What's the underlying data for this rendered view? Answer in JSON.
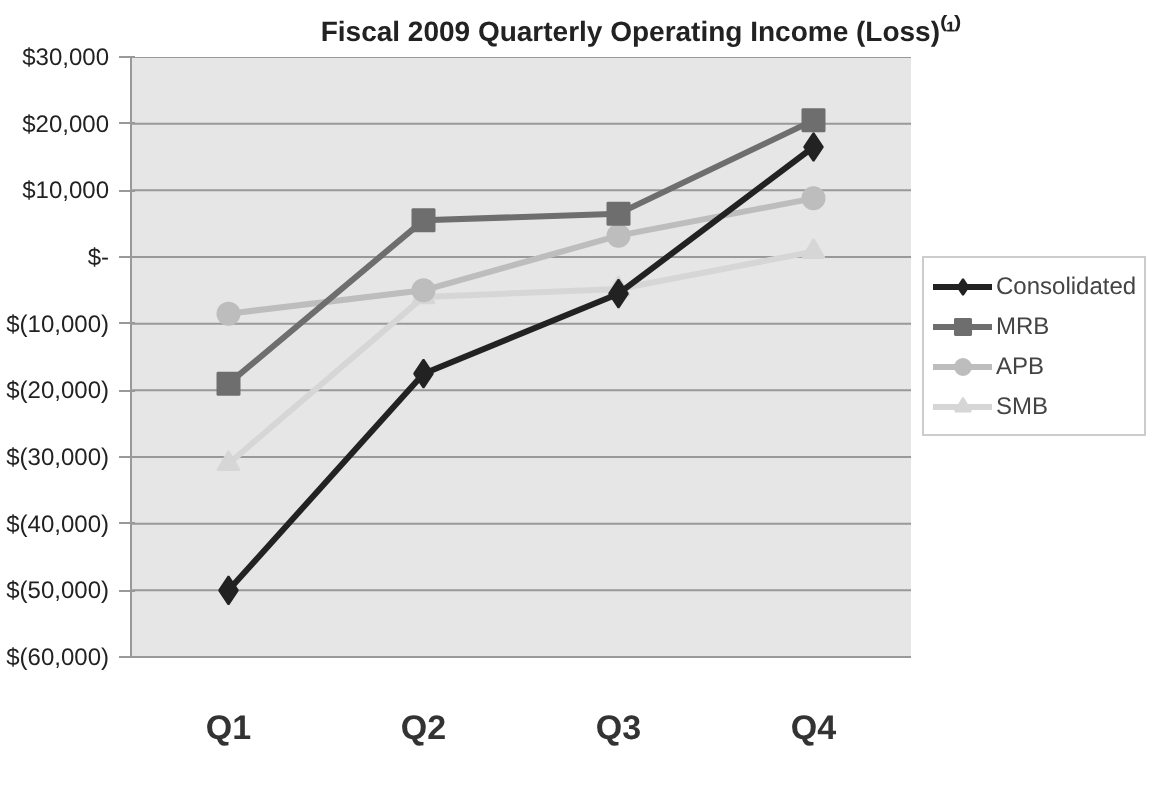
{
  "chart_data": {
    "type": "line",
    "title": "Fiscal 2009 Quarterly Operating Income (Loss)⁽¹⁾",
    "categories": [
      "Q1",
      "Q2",
      "Q3",
      "Q4"
    ],
    "series": [
      {
        "name": "Consolidated",
        "color": "#222222",
        "marker": "diamond",
        "values": [
          -50000,
          -17500,
          -5500,
          16500
        ]
      },
      {
        "name": "MRB",
        "color": "#6e6e6e",
        "marker": "square",
        "values": [
          -19000,
          5500,
          6500,
          20500
        ]
      },
      {
        "name": "APB",
        "color": "#bdbdbd",
        "marker": "circle",
        "values": [
          -8500,
          -5000,
          3200,
          8800
        ]
      },
      {
        "name": "SMB",
        "color": "#d6d6d6",
        "marker": "triangle",
        "values": [
          -31000,
          -6000,
          -4800,
          800
        ]
      }
    ],
    "ylim": [
      -60000,
      30000
    ],
    "yticks": [
      {
        "value": -60000,
        "label": "$(60,000)"
      },
      {
        "value": -50000,
        "label": "$(50,000)"
      },
      {
        "value": -40000,
        "label": "$(40,000)"
      },
      {
        "value": -30000,
        "label": "$(30,000)"
      },
      {
        "value": -20000,
        "label": "$(20,000)"
      },
      {
        "value": -10000,
        "label": "$(10,000)"
      },
      {
        "value": 0,
        "label": "$-"
      },
      {
        "value": 10000,
        "label": "$10,000"
      },
      {
        "value": 20000,
        "label": "$20,000"
      },
      {
        "value": 30000,
        "label": "$30,000"
      }
    ],
    "grid": "y",
    "legend": "right",
    "line_style": "solid"
  }
}
